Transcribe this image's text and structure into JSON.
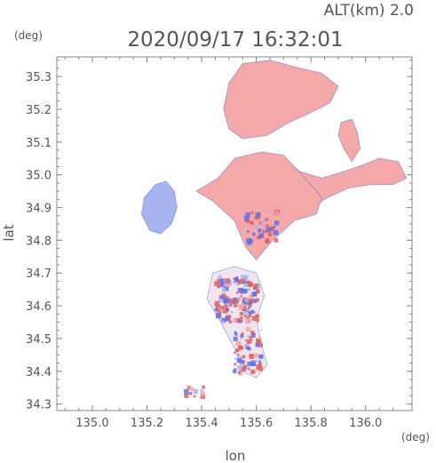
{
  "header": {
    "altitude_label": "ALT(km) 2.0",
    "timestamp": "2020/09/17 16:32:01"
  },
  "chart_data": {
    "type": "heatmap",
    "title": "2020/09/17 16:32:01",
    "subtitle": "ALT(km) 2.0",
    "xlabel": "lon",
    "ylabel": "lat",
    "x_unit": "(deg)",
    "y_unit": "(deg)",
    "xlim": [
      134.87,
      136.17
    ],
    "ylim": [
      34.28,
      35.36
    ],
    "x_ticks": [
      135.0,
      135.2,
      135.4,
      135.6,
      135.8,
      136.0
    ],
    "x_tick_labels": [
      "135.0",
      "135.2",
      "135.4",
      "135.6",
      "135.8",
      "136.0"
    ],
    "y_ticks": [
      34.3,
      34.4,
      34.5,
      34.6,
      34.7,
      34.8,
      34.9,
      35.0,
      35.1,
      35.2,
      35.3
    ],
    "y_tick_labels": [
      "34.3",
      "34.4",
      "34.5",
      "34.6",
      "34.7",
      "34.8",
      "34.9",
      "35.0",
      "35.1",
      "35.2",
      "35.3"
    ],
    "grid": false,
    "colors": {
      "positive": "#f4a8a8",
      "negative": "#a8b4f0",
      "strong_positive": "#e06060",
      "strong_negative": "#6070e0",
      "axis": "#888888",
      "text": "#555555"
    },
    "echo_regions": [
      {
        "name": "north-cell",
        "sign": "positive",
        "polygon": [
          [
            135.55,
            35.34
          ],
          [
            135.65,
            35.35
          ],
          [
            135.74,
            35.33
          ],
          [
            135.84,
            35.31
          ],
          [
            135.9,
            35.27
          ],
          [
            135.87,
            35.22
          ],
          [
            135.8,
            35.19
          ],
          [
            135.72,
            35.16
          ],
          [
            135.64,
            35.12
          ],
          [
            135.55,
            35.11
          ],
          [
            135.5,
            35.14
          ],
          [
            135.48,
            35.2
          ],
          [
            135.5,
            35.28
          ]
        ]
      },
      {
        "name": "northeast-patch",
        "sign": "positive",
        "polygon": [
          [
            135.91,
            35.16
          ],
          [
            135.95,
            35.17
          ],
          [
            135.97,
            35.13
          ],
          [
            135.98,
            35.08
          ],
          [
            135.95,
            35.04
          ],
          [
            135.92,
            35.08
          ],
          [
            135.9,
            35.12
          ]
        ]
      },
      {
        "name": "east-arm",
        "sign": "positive",
        "polygon": [
          [
            135.68,
            35.06
          ],
          [
            135.76,
            35.01
          ],
          [
            135.84,
            34.99
          ],
          [
            135.92,
            35.01
          ],
          [
            135.99,
            35.03
          ],
          [
            136.05,
            35.05
          ],
          [
            136.12,
            35.04
          ],
          [
            136.15,
            34.99
          ],
          [
            136.1,
            34.97
          ],
          [
            136.02,
            34.97
          ],
          [
            135.94,
            34.96
          ],
          [
            135.86,
            34.93
          ],
          [
            135.8,
            34.9
          ],
          [
            135.74,
            34.92
          ]
        ]
      },
      {
        "name": "central-band",
        "sign": "positive",
        "polygon": [
          [
            135.52,
            35.05
          ],
          [
            135.62,
            35.07
          ],
          [
            135.7,
            35.06
          ],
          [
            135.8,
            34.97
          ],
          [
            135.84,
            34.93
          ],
          [
            135.82,
            34.88
          ],
          [
            135.74,
            34.86
          ],
          [
            135.66,
            34.8
          ],
          [
            135.6,
            34.74
          ],
          [
            135.56,
            34.78
          ],
          [
            135.52,
            34.86
          ],
          [
            135.44,
            34.92
          ],
          [
            135.38,
            34.95
          ],
          [
            135.46,
            34.99
          ]
        ]
      },
      {
        "name": "west-cell",
        "sign": "negative",
        "polygon": [
          [
            135.23,
            34.97
          ],
          [
            135.27,
            34.98
          ],
          [
            135.3,
            34.95
          ],
          [
            135.31,
            34.9
          ],
          [
            135.29,
            34.85
          ],
          [
            135.25,
            34.82
          ],
          [
            135.21,
            34.83
          ],
          [
            135.18,
            34.88
          ],
          [
            135.19,
            34.93
          ]
        ]
      },
      {
        "name": "south-cell",
        "sign": "mixed",
        "polygon": [
          [
            135.44,
            34.7
          ],
          [
            135.52,
            34.72
          ],
          [
            135.6,
            34.7
          ],
          [
            135.63,
            34.63
          ],
          [
            135.6,
            34.56
          ],
          [
            135.62,
            34.48
          ],
          [
            135.64,
            34.42
          ],
          [
            135.6,
            34.38
          ],
          [
            135.55,
            34.4
          ],
          [
            135.52,
            34.47
          ],
          [
            135.47,
            34.55
          ],
          [
            135.42,
            34.62
          ]
        ]
      }
    ],
    "scatter_clusters": [
      {
        "lon": 135.53,
        "lat": 34.62,
        "spread_lon": 0.08,
        "spread_lat": 0.07,
        "count": 140
      },
      {
        "lon": 135.57,
        "lat": 34.46,
        "spread_lon": 0.05,
        "spread_lat": 0.07,
        "count": 80
      },
      {
        "lon": 135.62,
        "lat": 34.84,
        "spread_lon": 0.06,
        "spread_lat": 0.05,
        "count": 50
      },
      {
        "lon": 135.37,
        "lat": 34.34,
        "spread_lon": 0.04,
        "spread_lat": 0.02,
        "count": 12
      }
    ]
  }
}
